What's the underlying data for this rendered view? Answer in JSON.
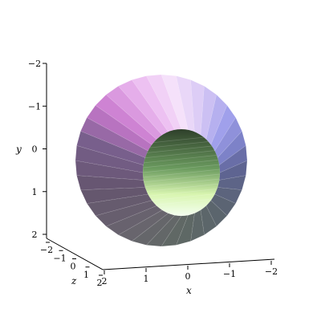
{
  "chart_data": {
    "type": "surface3d",
    "surface": "torus",
    "major_radius": 1.5,
    "minor_radius": 0.75,
    "axes": {
      "x": {
        "label": "x",
        "ticks": [
          "2",
          "1",
          "0",
          "−1",
          "−2"
        ]
      },
      "y": {
        "label": "y",
        "ticks": [
          "−2",
          "−1",
          "0",
          "1",
          "2"
        ]
      },
      "z": {
        "label": "z",
        "ticks": [
          "−2",
          "−1",
          "0",
          "1",
          "2"
        ]
      }
    },
    "coloring": "lighting-shaded pastel (pink, lavender, blue, green)",
    "background": "#ffffff"
  }
}
